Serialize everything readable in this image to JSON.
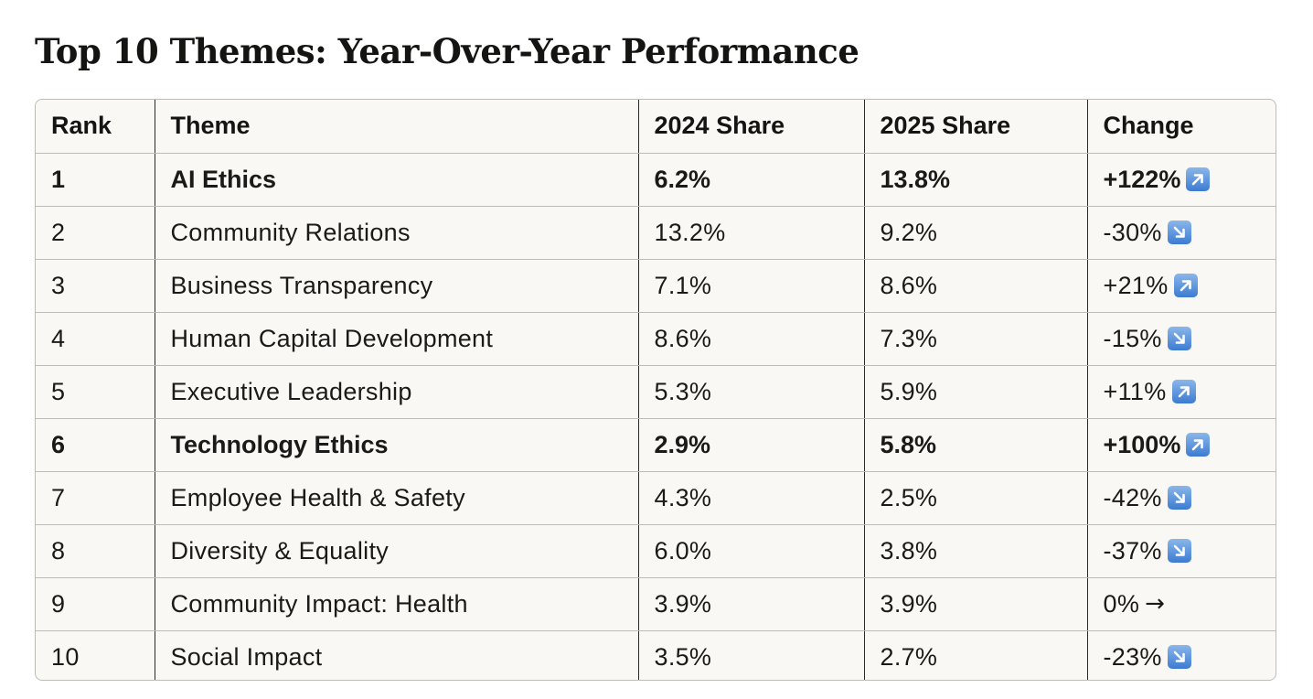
{
  "title": "Top 10 Themes: Year-Over-Year Performance",
  "table": {
    "headers": [
      "Rank",
      "Theme",
      "2024 Share",
      "2025 Share",
      "Change"
    ],
    "rows": [
      {
        "rank": "1",
        "theme": "AI Ethics",
        "y2024": "6.2%",
        "y2025": "13.8%",
        "change": "+122%",
        "direction": "up",
        "highlight": true
      },
      {
        "rank": "2",
        "theme": "Community Relations",
        "y2024": "13.2%",
        "y2025": "9.2%",
        "change": "-30%",
        "direction": "down",
        "highlight": false
      },
      {
        "rank": "3",
        "theme": "Business Transparency",
        "y2024": "7.1%",
        "y2025": "8.6%",
        "change": "+21%",
        "direction": "up",
        "highlight": false
      },
      {
        "rank": "4",
        "theme": "Human Capital Development",
        "y2024": "8.6%",
        "y2025": "7.3%",
        "change": "-15%",
        "direction": "down",
        "highlight": false
      },
      {
        "rank": "5",
        "theme": "Executive Leadership",
        "y2024": "5.3%",
        "y2025": "5.9%",
        "change": "+11%",
        "direction": "up",
        "highlight": false
      },
      {
        "rank": "6",
        "theme": "Technology Ethics",
        "y2024": "2.9%",
        "y2025": "5.8%",
        "change": "+100%",
        "direction": "up",
        "highlight": true
      },
      {
        "rank": "7",
        "theme": "Employee Health & Safety",
        "y2024": "4.3%",
        "y2025": "2.5%",
        "change": "-42%",
        "direction": "down",
        "highlight": false
      },
      {
        "rank": "8",
        "theme": "Diversity & Equality",
        "y2024": "6.0%",
        "y2025": "3.8%",
        "change": "-37%",
        "direction": "down",
        "highlight": false
      },
      {
        "rank": "9",
        "theme": "Community Impact: Health",
        "y2024": "3.9%",
        "y2025": "3.9%",
        "change": "0%",
        "direction": "flat",
        "highlight": false
      },
      {
        "rank": "10",
        "theme": "Social Impact",
        "y2024": "3.5%",
        "y2025": "2.7%",
        "change": "-23%",
        "direction": "down",
        "highlight": false
      }
    ]
  },
  "icons": {
    "up": "arrow-up-right-icon",
    "down": "arrow-down-right-icon",
    "flat": "arrow-right-icon",
    "flat_glyph": "→"
  },
  "colors": {
    "table_bg": "#f9f8f5",
    "icon_blue": "#3d7bd1",
    "border": "#bdbcb6"
  }
}
